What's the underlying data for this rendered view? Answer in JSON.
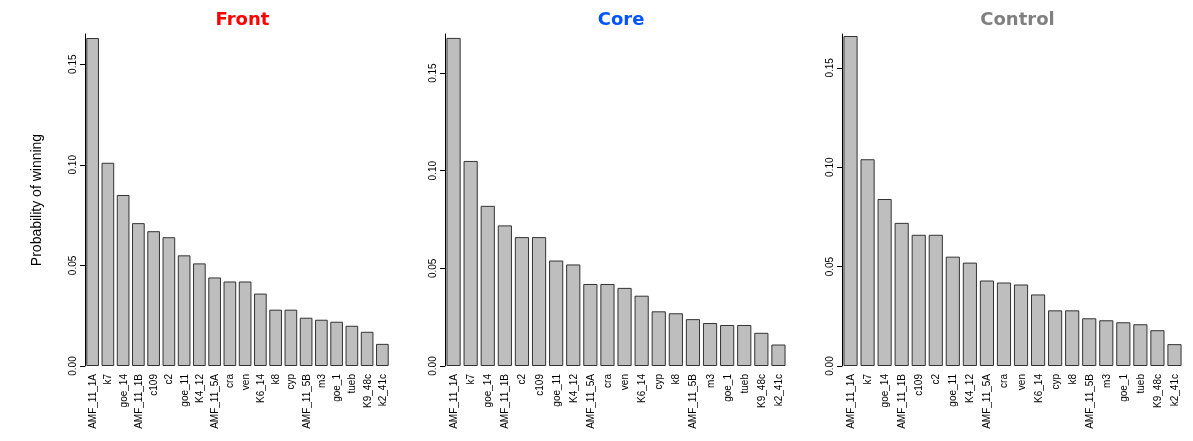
{
  "chart_data": [
    {
      "type": "bar",
      "title": "Front",
      "ylabel": "Probability of winning",
      "categories": [
        "AMF_11_1A",
        "k7",
        "goe_14",
        "AMF_11_1B",
        "c109",
        "c2",
        "goe_11",
        "K4_12",
        "AMF_11_5A",
        "cra",
        "ven",
        "K6_14",
        "k8",
        "cyp",
        "AMF_11_5B",
        "m3",
        "goe_1",
        "tueb",
        "K9_48c",
        "k2_41c"
      ],
      "series": [
        {
          "color": "#bebebe",
          "values": [
            0.163,
            0.101,
            0.085,
            0.071,
            0.067,
            0.064,
            0.055,
            0.051,
            0.044,
            0.042,
            0.042,
            0.036,
            0.028,
            0.028,
            0.024,
            0.023,
            0.022,
            0.02,
            0.017,
            0.011
          ]
        }
      ],
      "ylim": [
        0,
        0.165
      ],
      "yticks": [
        {
          "value": 0,
          "label": "0.00"
        },
        {
          "value": 0.05,
          "label": "0.05"
        },
        {
          "value": 0.1,
          "label": "0.10"
        },
        {
          "value": 0.15,
          "label": "0.15"
        }
      ]
    },
    {
      "type": "bar",
      "title": "Core",
      "categories": [
        "AMF_11_1A",
        "k7",
        "goe_14",
        "AMF_11_1B",
        "c2",
        "c109",
        "goe_11",
        "K4_12",
        "AMF_11_5A",
        "cra",
        "ven",
        "K6_14",
        "cyp",
        "k8",
        "AMF_11_5B",
        "m3",
        "goe_1",
        "tueb",
        "K9_48c",
        "k2_41c"
      ],
      "series": [
        {
          "color": "#bebebe",
          "values": [
            0.168,
            0.105,
            0.082,
            0.072,
            0.066,
            0.066,
            0.054,
            0.052,
            0.042,
            0.042,
            0.04,
            0.036,
            0.028,
            0.027,
            0.024,
            0.022,
            0.021,
            0.021,
            0.017,
            0.011
          ]
        }
      ],
      "ylim": [
        0,
        0.17
      ],
      "yticks": [
        {
          "value": 0,
          "label": "0.00"
        },
        {
          "value": 0.05,
          "label": "0.05"
        },
        {
          "value": 0.1,
          "label": "0.10"
        },
        {
          "value": 0.15,
          "label": "0.15"
        }
      ]
    },
    {
      "type": "bar",
      "title": "Control",
      "categories": [
        "AMF_11_1A",
        "k7",
        "goe_14",
        "AMF_11_1B",
        "c109",
        "c2",
        "goe_11",
        "K4_12",
        "AMF_11_5A",
        "cra",
        "ven",
        "K6_14",
        "cyp",
        "k8",
        "AMF_11_5B",
        "m3",
        "goe_1",
        "tueb",
        "K9_48c",
        "k2_41c"
      ],
      "series": [
        {
          "color": "#bebebe",
          "values": [
            0.166,
            0.104,
            0.084,
            0.072,
            0.066,
            0.066,
            0.055,
            0.052,
            0.043,
            0.042,
            0.041,
            0.036,
            0.028,
            0.028,
            0.024,
            0.023,
            0.022,
            0.021,
            0.018,
            0.011
          ]
        }
      ],
      "ylim": [
        0,
        0.167
      ],
      "yticks": [
        {
          "value": 0,
          "label": "0.00"
        },
        {
          "value": 0.05,
          "label": "0.05"
        },
        {
          "value": 0.1,
          "label": "0.10"
        },
        {
          "value": 0.15,
          "label": "0.15"
        }
      ]
    }
  ]
}
